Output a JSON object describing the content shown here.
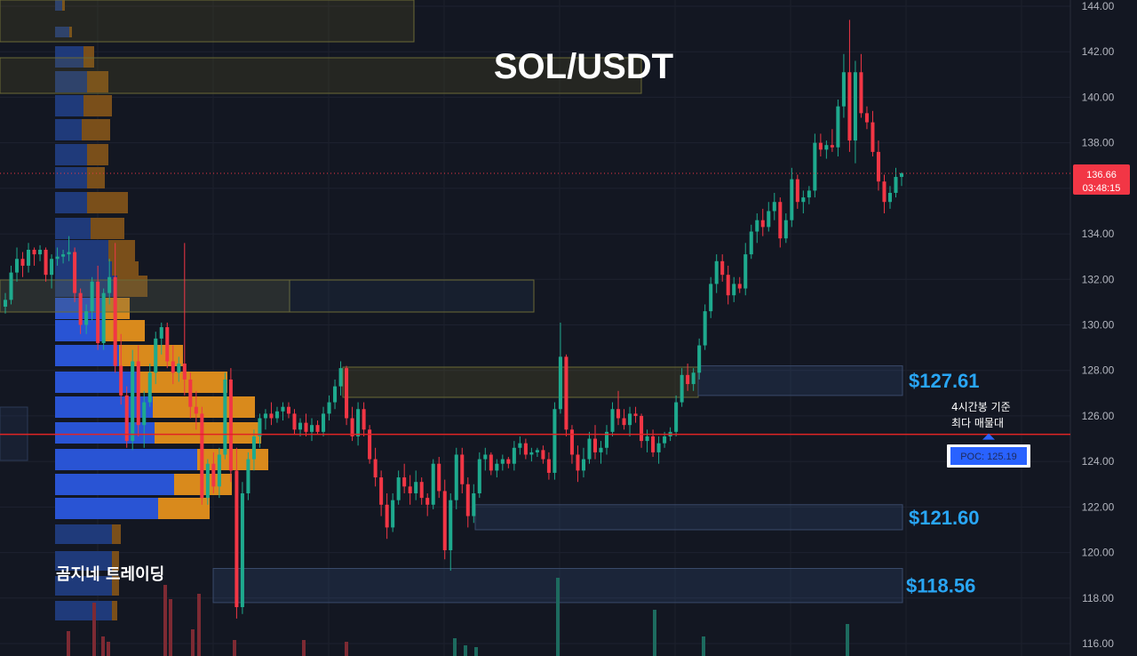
{
  "chart_data": {
    "type": "candlestick",
    "title": "SOL/USDT",
    "watermark": "곰지네 트레이딩",
    "y_axis": {
      "ticks": [
        "144.00",
        "142.00",
        "140.00",
        "138.00",
        "136.00",
        "134.00",
        "132.00",
        "130.00",
        "128.00",
        "126.00",
        "124.00",
        "122.00",
        "120.00",
        "118.00",
        "116.00"
      ],
      "range": [
        115.5,
        144.3
      ]
    },
    "last_price": "136.66",
    "countdown": "03:48:15",
    "poc": {
      "label": "POC: 125.19",
      "value": 125.19,
      "note_line1": "4시간봉 기준",
      "note_line2": "최다 매물대"
    },
    "zones": [
      {
        "label": "$127.61",
        "low": 126.9,
        "high": 128.2
      },
      {
        "label": "$121.60",
        "low": 121.0,
        "high": 122.1
      },
      {
        "label": "$118.56",
        "low": 117.8,
        "high": 119.3
      }
    ],
    "candles": [
      [
        130.8,
        131.4,
        130.5,
        131.1
      ],
      [
        131.1,
        132.6,
        130.9,
        132.3
      ],
      [
        132.3,
        133.4,
        131.9,
        132.9
      ],
      [
        132.9,
        133.2,
        132.1,
        132.6
      ],
      [
        132.6,
        133.6,
        132.3,
        133.3
      ],
      [
        133.3,
        133.4,
        132.6,
        133.1
      ],
      [
        133.1,
        133.5,
        132.8,
        133.3
      ],
      [
        133.3,
        133.4,
        131.9,
        132.2
      ],
      [
        132.2,
        133.1,
        131.6,
        132.9
      ],
      [
        132.9,
        133.4,
        132.6,
        133.0
      ],
      [
        133.0,
        133.3,
        132.7,
        133.1
      ],
      [
        133.1,
        133.9,
        132.8,
        133.2
      ],
      [
        133.2,
        133.4,
        131.0,
        131.4
      ],
      [
        131.4,
        131.6,
        129.6,
        130.0
      ],
      [
        130.0,
        130.9,
        129.6,
        130.6
      ],
      [
        130.6,
        132.1,
        130.2,
        131.9
      ],
      [
        131.9,
        132.6,
        128.9,
        129.2
      ],
      [
        129.2,
        131.6,
        128.9,
        131.4
      ],
      [
        131.4,
        132.9,
        130.9,
        132.1
      ],
      [
        132.1,
        133.6,
        127.9,
        128.2
      ],
      [
        128.2,
        129.6,
        126.5,
        126.9
      ],
      [
        126.9,
        127.3,
        124.6,
        124.9
      ],
      [
        124.9,
        128.9,
        124.5,
        128.4
      ],
      [
        128.4,
        129.1,
        125.1,
        125.6
      ],
      [
        125.6,
        127.1,
        124.6,
        126.6
      ],
      [
        126.6,
        128.3,
        126.4,
        127.9
      ],
      [
        127.9,
        129.7,
        127.4,
        129.4
      ],
      [
        129.4,
        130.1,
        128.7,
        129.9
      ],
      [
        129.9,
        130.1,
        128.1,
        128.4
      ],
      [
        128.4,
        129.1,
        127.4,
        127.9
      ],
      [
        127.9,
        128.6,
        127.5,
        128.3
      ],
      [
        128.3,
        133.6,
        126.9,
        127.6
      ],
      [
        127.6,
        127.9,
        125.9,
        126.4
      ],
      [
        126.4,
        127.1,
        125.4,
        126.1
      ],
      [
        126.1,
        126.4,
        122.1,
        122.4
      ],
      [
        122.4,
        124.1,
        122.1,
        123.9
      ],
      [
        123.9,
        124.4,
        122.6,
        122.9
      ],
      [
        122.9,
        124.6,
        122.4,
        124.3
      ],
      [
        124.3,
        127.9,
        124.1,
        127.6
      ],
      [
        127.6,
        128.1,
        123.1,
        123.6
      ],
      [
        123.6,
        124.6,
        117.1,
        117.6
      ],
      [
        117.6,
        123.1,
        117.3,
        122.6
      ],
      [
        122.6,
        124.4,
        122.3,
        124.1
      ],
      [
        124.1,
        125.4,
        123.6,
        125.1
      ],
      [
        125.1,
        126.1,
        124.6,
        125.9
      ],
      [
        125.9,
        126.3,
        125.4,
        126.1
      ],
      [
        126.1,
        126.6,
        125.6,
        125.9
      ],
      [
        125.9,
        126.4,
        125.7,
        126.2
      ],
      [
        126.2,
        126.6,
        125.8,
        126.4
      ],
      [
        126.4,
        126.6,
        125.9,
        126.1
      ],
      [
        126.1,
        126.3,
        125.2,
        125.4
      ],
      [
        125.4,
        125.9,
        125.1,
        125.7
      ],
      [
        125.7,
        126.1,
        125.1,
        125.3
      ],
      [
        125.3,
        125.9,
        124.9,
        125.6
      ],
      [
        125.6,
        125.8,
        125.2,
        125.3
      ],
      [
        125.3,
        126.4,
        125.1,
        126.1
      ],
      [
        126.1,
        126.9,
        125.8,
        126.6
      ],
      [
        126.6,
        127.6,
        126.3,
        127.3
      ],
      [
        127.3,
        128.4,
        126.9,
        128.1
      ],
      [
        128.1,
        128.2,
        125.6,
        125.9
      ],
      [
        125.9,
        126.4,
        124.9,
        125.1
      ],
      [
        125.1,
        126.6,
        124.7,
        126.3
      ],
      [
        126.3,
        126.6,
        125.1,
        125.4
      ],
      [
        125.4,
        125.6,
        123.9,
        124.1
      ],
      [
        124.1,
        124.6,
        122.9,
        123.3
      ],
      [
        123.3,
        123.6,
        121.6,
        122.1
      ],
      [
        122.1,
        122.6,
        120.6,
        121.1
      ],
      [
        121.1,
        122.6,
        120.9,
        122.3
      ],
      [
        122.3,
        123.6,
        122.1,
        123.3
      ],
      [
        123.3,
        123.9,
        122.6,
        122.9
      ],
      [
        122.9,
        123.4,
        122.1,
        122.6
      ],
      [
        122.6,
        123.6,
        122.3,
        123.1
      ],
      [
        123.1,
        123.3,
        122.1,
        122.4
      ],
      [
        122.4,
        122.6,
        121.6,
        122.1
      ],
      [
        122.1,
        124.1,
        121.9,
        123.9
      ],
      [
        123.9,
        124.2,
        122.4,
        122.7
      ],
      [
        122.7,
        123.2,
        119.7,
        120.1
      ],
      [
        120.1,
        122.6,
        119.2,
        122.3
      ],
      [
        122.3,
        124.6,
        121.9,
        124.3
      ],
      [
        124.3,
        124.6,
        122.6,
        123.0
      ],
      [
        123.0,
        123.3,
        121.1,
        121.6
      ],
      [
        121.6,
        123.0,
        121.3,
        122.6
      ],
      [
        122.6,
        124.4,
        122.4,
        124.1
      ],
      [
        124.1,
        124.6,
        123.6,
        124.3
      ],
      [
        124.3,
        124.4,
        123.4,
        123.6
      ],
      [
        123.6,
        124.1,
        123.3,
        123.9
      ],
      [
        123.9,
        124.3,
        123.6,
        124.1
      ],
      [
        124.1,
        124.2,
        123.7,
        123.9
      ],
      [
        123.9,
        124.9,
        123.6,
        124.6
      ],
      [
        124.6,
        125.1,
        124.3,
        124.8
      ],
      [
        124.8,
        125.0,
        124.1,
        124.3
      ],
      [
        124.3,
        124.6,
        124.0,
        124.4
      ],
      [
        124.4,
        124.6,
        124.2,
        124.5
      ],
      [
        124.5,
        124.7,
        123.9,
        124.1
      ],
      [
        124.1,
        124.4,
        123.2,
        123.5
      ],
      [
        123.5,
        126.6,
        123.2,
        126.3
      ],
      [
        126.3,
        130.1,
        126.1,
        128.6
      ],
      [
        128.6,
        128.7,
        125.1,
        125.4
      ],
      [
        125.4,
        125.6,
        123.9,
        124.3
      ],
      [
        124.3,
        124.7,
        123.1,
        123.6
      ],
      [
        123.6,
        124.6,
        123.3,
        124.1
      ],
      [
        124.1,
        125.3,
        123.9,
        125.0
      ],
      [
        125.0,
        125.6,
        124.1,
        124.4
      ],
      [
        124.4,
        124.9,
        123.9,
        124.6
      ],
      [
        124.6,
        125.6,
        124.3,
        125.3
      ],
      [
        125.3,
        126.6,
        125.1,
        126.3
      ],
      [
        126.3,
        127.1,
        125.6,
        125.9
      ],
      [
        125.9,
        126.3,
        125.4,
        125.6
      ],
      [
        125.6,
        126.4,
        125.1,
        126.1
      ],
      [
        126.1,
        126.4,
        125.7,
        126.0
      ],
      [
        126.0,
        126.1,
        124.6,
        124.9
      ],
      [
        124.9,
        125.4,
        124.4,
        125.1
      ],
      [
        125.1,
        125.4,
        124.2,
        124.4
      ],
      [
        124.4,
        125.1,
        123.9,
        124.8
      ],
      [
        124.8,
        125.3,
        124.6,
        125.1
      ],
      [
        125.1,
        125.5,
        124.9,
        125.3
      ],
      [
        125.3,
        126.9,
        125.1,
        126.6
      ],
      [
        126.6,
        128.1,
        126.4,
        127.8
      ],
      [
        127.8,
        128.3,
        127.1,
        127.4
      ],
      [
        127.4,
        128.1,
        127.1,
        127.9
      ],
      [
        127.9,
        129.4,
        127.6,
        129.1
      ],
      [
        129.1,
        130.9,
        128.9,
        130.6
      ],
      [
        130.6,
        132.1,
        130.3,
        131.8
      ],
      [
        131.8,
        133.1,
        131.4,
        132.8
      ],
      [
        132.8,
        133.1,
        131.9,
        132.2
      ],
      [
        132.2,
        132.6,
        130.9,
        131.3
      ],
      [
        131.3,
        132.1,
        131.0,
        131.8
      ],
      [
        131.8,
        132.1,
        131.4,
        131.6
      ],
      [
        131.6,
        133.6,
        131.3,
        133.1
      ],
      [
        133.1,
        134.4,
        132.9,
        134.1
      ],
      [
        134.1,
        134.9,
        133.6,
        134.6
      ],
      [
        134.6,
        135.1,
        133.9,
        134.3
      ],
      [
        134.3,
        135.4,
        134.1,
        135.0
      ],
      [
        135.0,
        135.8,
        134.6,
        135.4
      ],
      [
        135.4,
        135.6,
        133.4,
        133.8
      ],
      [
        133.8,
        134.9,
        133.6,
        134.6
      ],
      [
        134.6,
        136.9,
        134.3,
        136.4
      ],
      [
        136.4,
        136.6,
        135.1,
        135.4
      ],
      [
        135.4,
        135.9,
        134.9,
        135.6
      ],
      [
        135.6,
        136.1,
        135.3,
        135.9
      ],
      [
        135.9,
        138.4,
        135.6,
        138.0
      ],
      [
        138.0,
        138.4,
        137.4,
        137.7
      ],
      [
        137.7,
        138.1,
        137.3,
        137.9
      ],
      [
        137.9,
        138.6,
        137.6,
        137.8
      ],
      [
        137.8,
        139.9,
        137.4,
        139.6
      ],
      [
        139.6,
        141.9,
        139.1,
        141.1
      ],
      [
        141.1,
        143.4,
        137.6,
        138.1
      ],
      [
        138.1,
        141.6,
        137.1,
        141.1
      ],
      [
        141.1,
        141.9,
        139.1,
        139.3
      ],
      [
        139.3,
        139.6,
        138.6,
        138.9
      ],
      [
        138.9,
        139.4,
        137.4,
        137.6
      ],
      [
        137.6,
        138.1,
        135.9,
        136.3
      ],
      [
        136.3,
        136.6,
        134.9,
        135.4
      ],
      [
        135.4,
        136.1,
        135.1,
        135.8
      ],
      [
        135.8,
        136.9,
        135.6,
        136.5
      ],
      [
        136.5,
        136.7,
        136.1,
        136.66
      ]
    ]
  }
}
